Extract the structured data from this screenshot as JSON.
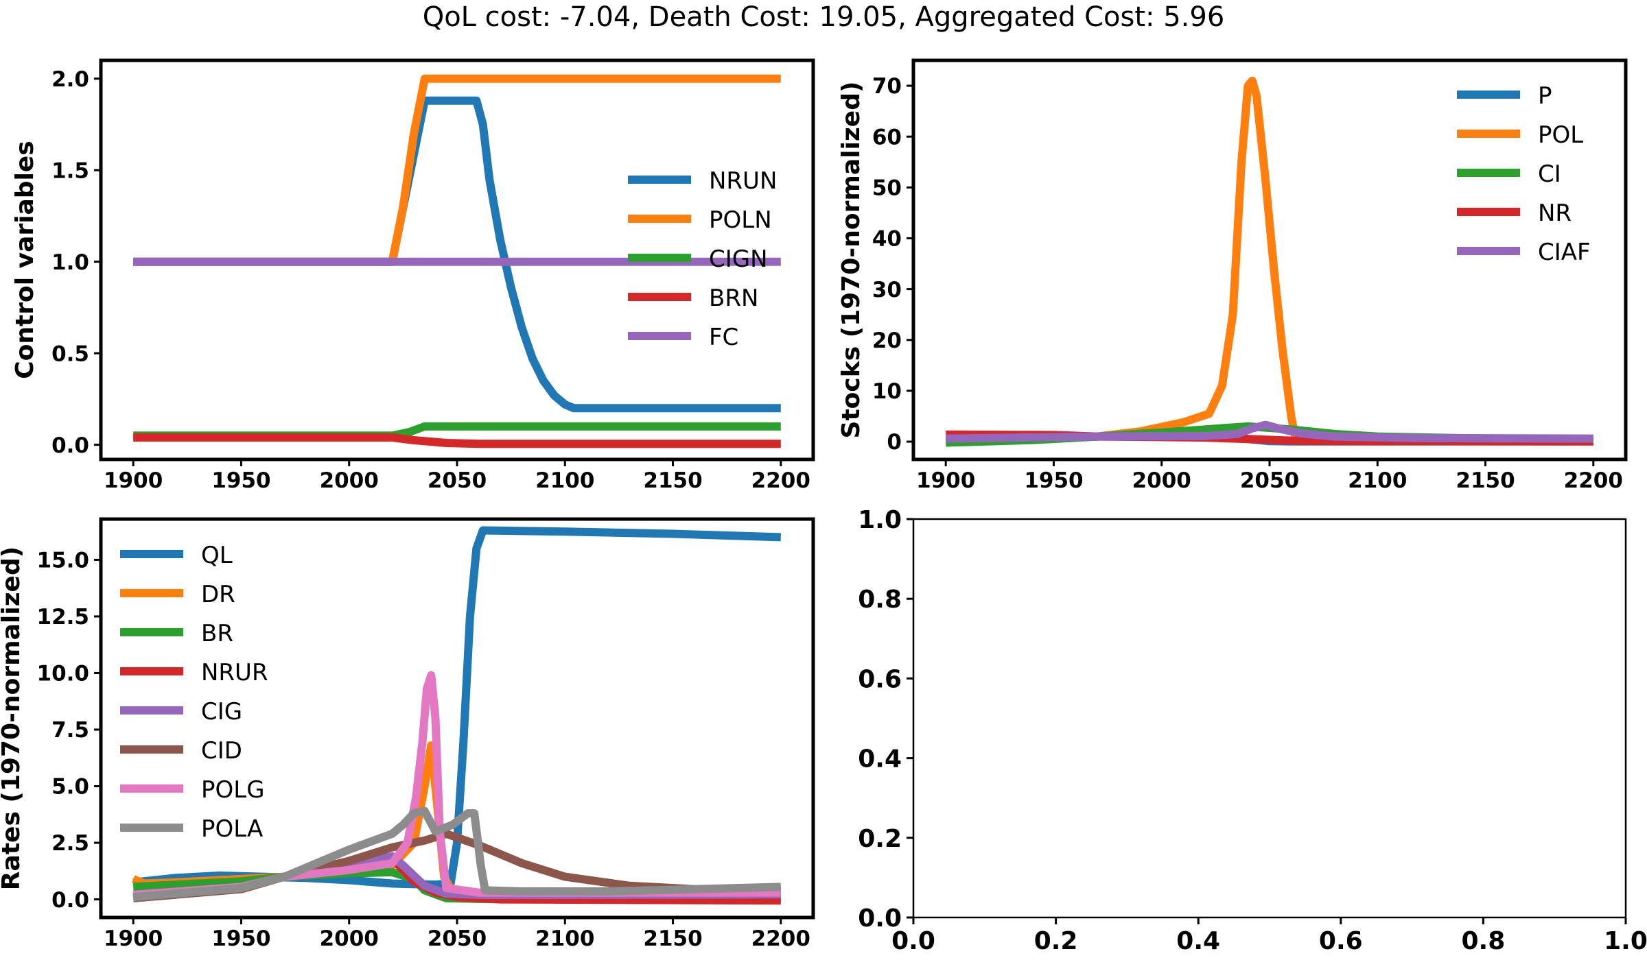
{
  "suptitle": "QoL cost: -7.04, Death Cost: 19.05, Aggregated Cost: 5.96",
  "chart_data": [
    {
      "type": "line",
      "ylabel": "Control variables",
      "xlim": [
        1885,
        2215
      ],
      "ylim": [
        -0.08,
        2.1
      ],
      "xticks": [
        1900,
        1950,
        2000,
        2050,
        2100,
        2150,
        2200
      ],
      "yticks": [
        0.0,
        0.5,
        1.0,
        1.5,
        2.0
      ],
      "ytick_labels": [
        "0.0",
        "0.5",
        "1.0",
        "1.5",
        "2.0"
      ],
      "grid": false,
      "legend_position": "center-right",
      "series": [
        {
          "name": "NRUN",
          "color": "#1f77b4",
          "points": [
            [
              1900,
              1.0
            ],
            [
              2020,
              1.0
            ],
            [
              2035,
              1.88
            ],
            [
              2059,
              1.88
            ],
            [
              2062,
              1.75
            ],
            [
              2065,
              1.45
            ],
            [
              2070,
              1.12
            ],
            [
              2075,
              0.86
            ],
            [
              2080,
              0.64
            ],
            [
              2085,
              0.47
            ],
            [
              2090,
              0.35
            ],
            [
              2095,
              0.27
            ],
            [
              2100,
              0.22
            ],
            [
              2104,
              0.2
            ],
            [
              2200,
              0.2
            ]
          ]
        },
        {
          "name": "POLN",
          "color": "#ff7f0e",
          "points": [
            [
              1900,
              1.0
            ],
            [
              2020,
              1.0
            ],
            [
              2025,
              1.3
            ],
            [
              2030,
              1.7
            ],
            [
              2035,
              2.0
            ],
            [
              2200,
              2.0
            ]
          ]
        },
        {
          "name": "CIGN",
          "color": "#2ca02c",
          "points": [
            [
              1900,
              0.05
            ],
            [
              2020,
              0.05
            ],
            [
              2028,
              0.07
            ],
            [
              2035,
              0.1
            ],
            [
              2200,
              0.1
            ]
          ]
        },
        {
          "name": "BRN",
          "color": "#d62728",
          "points": [
            [
              1900,
              0.04
            ],
            [
              2020,
              0.04
            ],
            [
              2030,
              0.025
            ],
            [
              2045,
              0.01
            ],
            [
              2060,
              0.005
            ],
            [
              2200,
              0.005
            ]
          ]
        },
        {
          "name": "FC",
          "color": "#9467bd",
          "points": [
            [
              1900,
              1.0
            ],
            [
              2200,
              1.0
            ]
          ]
        }
      ]
    },
    {
      "type": "line",
      "ylabel": "Stocks (1970-normalized)",
      "xlim": [
        1885,
        2215
      ],
      "ylim": [
        -3.5,
        75
      ],
      "xticks": [
        1900,
        1950,
        2000,
        2050,
        2100,
        2150,
        2200
      ],
      "yticks": [
        0,
        10,
        20,
        30,
        40,
        50,
        60,
        70
      ],
      "ytick_labels": [
        "0",
        "10",
        "20",
        "30",
        "40",
        "50",
        "60",
        "70"
      ],
      "grid": false,
      "legend_position": "upper-right",
      "series": [
        {
          "name": "P",
          "color": "#1f77b4",
          "points": [
            [
              1900,
              0.5
            ],
            [
              1950,
              0.8
            ],
            [
              1970,
              1.0
            ],
            [
              2000,
              1.4
            ],
            [
              2020,
              1.6
            ],
            [
              2030,
              1.4
            ],
            [
              2040,
              0.5
            ],
            [
              2050,
              0.1
            ],
            [
              2060,
              0.05
            ],
            [
              2200,
              0.05
            ]
          ]
        },
        {
          "name": "POL",
          "color": "#ff7f0e",
          "points": [
            [
              1900,
              0.3
            ],
            [
              1950,
              0.6
            ],
            [
              1970,
              1.0
            ],
            [
              1990,
              2.0
            ],
            [
              2010,
              3.8
            ],
            [
              2022,
              5.5
            ],
            [
              2028,
              11
            ],
            [
              2033,
              25
            ],
            [
              2037,
              55
            ],
            [
              2040,
              70
            ],
            [
              2042,
              71
            ],
            [
              2044,
              68
            ],
            [
              2048,
              52
            ],
            [
              2052,
              34
            ],
            [
              2056,
              18
            ],
            [
              2060,
              5
            ],
            [
              2062,
              0.5
            ],
            [
              2200,
              0.1
            ]
          ]
        },
        {
          "name": "CI",
          "color": "#2ca02c",
          "points": [
            [
              1900,
              -0.2
            ],
            [
              1940,
              0.3
            ],
            [
              1970,
              1.0
            ],
            [
              2000,
              1.8
            ],
            [
              2020,
              2.4
            ],
            [
              2040,
              3.0
            ],
            [
              2060,
              2.4
            ],
            [
              2080,
              1.5
            ],
            [
              2100,
              1.0
            ],
            [
              2150,
              0.6
            ],
            [
              2200,
              0.5
            ]
          ]
        },
        {
          "name": "NR",
          "color": "#d62728",
          "points": [
            [
              1900,
              1.4
            ],
            [
              1950,
              1.3
            ],
            [
              1970,
              1.0
            ],
            [
              2000,
              0.9
            ],
            [
              2020,
              0.8
            ],
            [
              2040,
              0.5
            ],
            [
              2060,
              0.2
            ],
            [
              2080,
              0.1
            ],
            [
              2200,
              0.05
            ]
          ]
        },
        {
          "name": "CIAF",
          "color": "#9467bd",
          "points": [
            [
              1900,
              0.6
            ],
            [
              1970,
              1.0
            ],
            [
              2020,
              1.1
            ],
            [
              2035,
              1.5
            ],
            [
              2042,
              2.6
            ],
            [
              2048,
              3.3
            ],
            [
              2055,
              2.5
            ],
            [
              2065,
              1.6
            ],
            [
              2080,
              1.0
            ],
            [
              2120,
              0.7
            ],
            [
              2200,
              0.6
            ]
          ]
        }
      ]
    },
    {
      "type": "line",
      "ylabel": "Rates (1970-normalized)",
      "xlim": [
        1885,
        2215
      ],
      "ylim": [
        -0.8,
        16.8
      ],
      "xticks": [
        1900,
        1950,
        2000,
        2050,
        2100,
        2150,
        2200
      ],
      "yticks": [
        0.0,
        2.5,
        5.0,
        7.5,
        10.0,
        12.5,
        15.0
      ],
      "ytick_labels": [
        "0.0",
        "2.5",
        "5.0",
        "7.5",
        "10.0",
        "12.5",
        "15.0"
      ],
      "grid": false,
      "legend_position": "upper-left",
      "series": [
        {
          "name": "QL",
          "color": "#1f77b4",
          "points": [
            [
              1900,
              0.75
            ],
            [
              1920,
              0.95
            ],
            [
              1940,
              1.05
            ],
            [
              1960,
              1.0
            ],
            [
              1980,
              0.95
            ],
            [
              2000,
              0.85
            ],
            [
              2020,
              0.7
            ],
            [
              2040,
              0.65
            ],
            [
              2047,
              0.7
            ],
            [
              2050,
              2.5
            ],
            [
              2053,
              7
            ],
            [
              2056,
              12.5
            ],
            [
              2059,
              15.5
            ],
            [
              2062,
              16.3
            ],
            [
              2100,
              16.25
            ],
            [
              2150,
              16.15
            ],
            [
              2200,
              16.0
            ]
          ]
        },
        {
          "name": "DR",
          "color": "#ff7f0e",
          "points": [
            [
              1900,
              0.9
            ],
            [
              1905,
              0.7
            ],
            [
              1920,
              0.75
            ],
            [
              1950,
              0.9
            ],
            [
              1970,
              1.0
            ],
            [
              2000,
              1.2
            ],
            [
              2020,
              1.5
            ],
            [
              2030,
              2.5
            ],
            [
              2035,
              5
            ],
            [
              2038,
              6.8
            ],
            [
              2041,
              4
            ],
            [
              2044,
              1
            ],
            [
              2048,
              0.3
            ],
            [
              2100,
              0.1
            ],
            [
              2200,
              0.05
            ]
          ]
        },
        {
          "name": "BR",
          "color": "#2ca02c",
          "points": [
            [
              1900,
              0.55
            ],
            [
              1950,
              0.8
            ],
            [
              1970,
              1.0
            ],
            [
              2000,
              1.15
            ],
            [
              2020,
              1.2
            ],
            [
              2030,
              0.9
            ],
            [
              2035,
              0.4
            ],
            [
              2045,
              0.05
            ],
            [
              2060,
              0.02
            ],
            [
              2200,
              0.02
            ]
          ]
        },
        {
          "name": "NRUR",
          "color": "#d62728",
          "points": [
            [
              1900,
              0.1
            ],
            [
              1950,
              0.5
            ],
            [
              1970,
              1.0
            ],
            [
              2000,
              1.5
            ],
            [
              2020,
              1.8
            ],
            [
              2030,
              0.8
            ],
            [
              2040,
              0.3
            ],
            [
              2050,
              0.1
            ],
            [
              2070,
              0.0
            ],
            [
              2200,
              -0.05
            ]
          ]
        },
        {
          "name": "CIG",
          "color": "#9467bd",
          "points": [
            [
              1900,
              0.15
            ],
            [
              1950,
              0.5
            ],
            [
              1970,
              1.0
            ],
            [
              2000,
              1.5
            ],
            [
              2020,
              1.9
            ],
            [
              2025,
              1.5
            ],
            [
              2035,
              0.6
            ],
            [
              2045,
              0.25
            ],
            [
              2060,
              0.2
            ],
            [
              2100,
              0.2
            ],
            [
              2200,
              0.22
            ]
          ]
        },
        {
          "name": "CID",
          "color": "#8c564b",
          "points": [
            [
              1900,
              0.05
            ],
            [
              1950,
              0.45
            ],
            [
              1970,
              1.0
            ],
            [
              2000,
              1.7
            ],
            [
              2020,
              2.3
            ],
            [
              2035,
              2.6
            ],
            [
              2045,
              2.9
            ],
            [
              2060,
              2.4
            ],
            [
              2080,
              1.6
            ],
            [
              2100,
              1.0
            ],
            [
              2130,
              0.6
            ],
            [
              2160,
              0.45
            ],
            [
              2200,
              0.4
            ]
          ]
        },
        {
          "name": "POLG",
          "color": "#e377c2",
          "points": [
            [
              1900,
              0.2
            ],
            [
              1950,
              0.55
            ],
            [
              1970,
              1.0
            ],
            [
              2000,
              1.3
            ],
            [
              2020,
              1.6
            ],
            [
              2027,
              2.5
            ],
            [
              2031,
              4.5
            ],
            [
              2034,
              7
            ],
            [
              2036,
              9.3
            ],
            [
              2038,
              9.9
            ],
            [
              2040,
              8
            ],
            [
              2042,
              3
            ],
            [
              2045,
              0.5
            ],
            [
              2060,
              0.3
            ],
            [
              2200,
              0.3
            ]
          ]
        },
        {
          "name": "POLA",
          "color": "#8c8c8c",
          "points": [
            [
              1900,
              0.1
            ],
            [
              1950,
              0.5
            ],
            [
              1970,
              1.0
            ],
            [
              2000,
              2.2
            ],
            [
              2020,
              2.9
            ],
            [
              2025,
              3.3
            ],
            [
              2030,
              3.8
            ],
            [
              2035,
              3.9
            ],
            [
              2040,
              3.0
            ],
            [
              2048,
              3.3
            ],
            [
              2055,
              3.8
            ],
            [
              2058,
              3.8
            ],
            [
              2061,
              1.5
            ],
            [
              2063,
              0.4
            ],
            [
              2080,
              0.35
            ],
            [
              2120,
              0.35
            ],
            [
              2200,
              0.55
            ]
          ]
        }
      ]
    },
    {
      "type": "line",
      "xlim": [
        0.0,
        1.0
      ],
      "ylim": [
        0.0,
        1.0
      ],
      "xticks": [
        0.0,
        0.2,
        0.4,
        0.6,
        0.8,
        1.0
      ],
      "yticks": [
        0.0,
        0.2,
        0.4,
        0.6,
        0.8,
        1.0
      ],
      "xtick_labels": [
        "0.0",
        "0.2",
        "0.4",
        "0.6",
        "0.8",
        "1.0"
      ],
      "ytick_labels": [
        "0.0",
        "0.2",
        "0.4",
        "0.6",
        "0.8",
        "1.0"
      ],
      "grid": false,
      "series": []
    }
  ]
}
